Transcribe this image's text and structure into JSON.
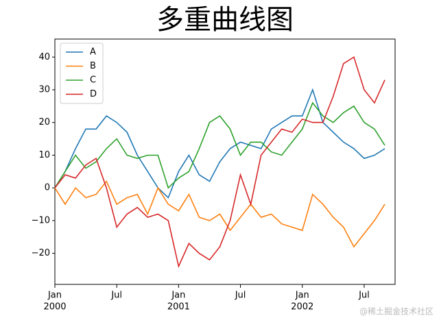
{
  "chart_data": {
    "type": "line",
    "title": "多重曲线图",
    "x": [
      "2000-01",
      "2000-02",
      "2000-03",
      "2000-04",
      "2000-05",
      "2000-06",
      "2000-07",
      "2000-08",
      "2000-09",
      "2000-10",
      "2000-11",
      "2000-12",
      "2001-01",
      "2001-02",
      "2001-03",
      "2001-04",
      "2001-05",
      "2001-06",
      "2001-07",
      "2001-08",
      "2001-09",
      "2001-10",
      "2001-11",
      "2001-12",
      "2002-01",
      "2002-02",
      "2002-03",
      "2002-04",
      "2002-05",
      "2002-06",
      "2002-07",
      "2002-08",
      "2002-09"
    ],
    "series": [
      {
        "name": "A",
        "color": "#1f77b4",
        "values": [
          0,
          5,
          12,
          18,
          18,
          22,
          20,
          17,
          10,
          5,
          0,
          -3,
          5,
          10,
          4,
          2,
          8,
          12,
          14,
          13,
          12,
          18,
          20,
          22,
          22,
          30,
          20,
          17,
          14,
          12,
          9,
          10,
          12
        ]
      },
      {
        "name": "B",
        "color": "#ff7f0e",
        "values": [
          0,
          -5,
          0,
          -3,
          -2,
          2,
          -5,
          -3,
          -2,
          -8,
          0,
          -5,
          -7,
          -2,
          -9,
          -10,
          -8,
          -13,
          -9,
          -5,
          -9,
          -8,
          -11,
          -12,
          -13,
          -2,
          -5,
          -9,
          -12,
          -18,
          -14,
          -10,
          -5
        ]
      },
      {
        "name": "C",
        "color": "#2ca02c",
        "values": [
          0,
          5,
          10,
          6,
          8,
          12,
          15,
          10,
          9,
          10,
          10,
          0,
          3,
          5,
          12,
          20,
          22,
          18,
          10,
          14,
          14,
          11,
          10,
          14,
          18,
          26,
          22,
          20,
          23,
          25,
          20,
          18,
          13
        ]
      },
      {
        "name": "D",
        "color": "#d62728",
        "values": [
          0,
          4,
          3,
          7,
          9,
          0,
          -12,
          -8,
          -6,
          -9,
          -8,
          -10,
          -24,
          -17,
          -20,
          -22,
          -18,
          -10,
          4,
          -5,
          10,
          14,
          18,
          17,
          21,
          20,
          20,
          28,
          38,
          40,
          30,
          26,
          33
        ]
      }
    ],
    "xlim": [
      "2000-01",
      "2002-10"
    ],
    "xticks": [
      {
        "value": "2000-01",
        "label": "Jan",
        "sublabel": "2000"
      },
      {
        "value": "2000-07",
        "label": "Jul"
      },
      {
        "value": "2001-01",
        "label": "Jan",
        "sublabel": "2001"
      },
      {
        "value": "2001-07",
        "label": "Jul"
      },
      {
        "value": "2002-01",
        "label": "Jan",
        "sublabel": "2002"
      },
      {
        "value": "2002-07",
        "label": "Jul"
      }
    ],
    "ylim": [
      -29.5,
      45.5
    ],
    "yticks": [
      {
        "value": -20,
        "label": "−20"
      },
      {
        "value": -10,
        "label": "−10"
      },
      0,
      10,
      20,
      30,
      40
    ],
    "legend": "upper left",
    "watermark": "@稀土掘金技术社区"
  }
}
